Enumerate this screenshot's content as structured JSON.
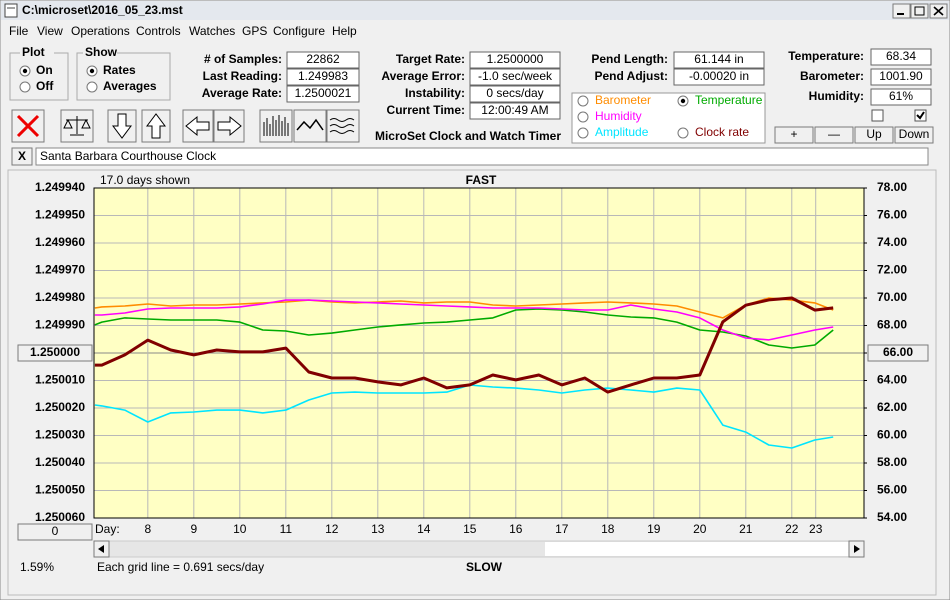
{
  "window": {
    "title": "C:\\microset\\2016_05_23.mst"
  },
  "menu": [
    "File",
    "View",
    "Operations",
    "Controls",
    "Watches",
    "GPS",
    "Configure",
    "Help"
  ],
  "plot_group": {
    "title": "Plot",
    "options": [
      {
        "label": "On",
        "checked": true
      },
      {
        "label": "Off",
        "checked": false
      }
    ]
  },
  "show_group": {
    "title": "Show",
    "options": [
      {
        "label": "Rates",
        "checked": true
      },
      {
        "label": "Averages",
        "checked": false
      }
    ]
  },
  "stats": [
    {
      "label": "# of Samples:",
      "value": "22862"
    },
    {
      "label": "Last Reading:",
      "value": "1.249983"
    },
    {
      "label": "Average Rate:",
      "value": "1.2500021"
    }
  ],
  "rates": [
    {
      "label": "Target Rate:",
      "value": "1.2500000"
    },
    {
      "label": "Average Error:",
      "value": "-1.0 sec/week"
    },
    {
      "label": "Instability:",
      "value": "0 secs/day"
    },
    {
      "label": "Current Time:",
      "value": "12:00:49 AM"
    }
  ],
  "pendulum": [
    {
      "label": "Pend Length:",
      "value": "61.144 in"
    },
    {
      "label": "Pend Adjust:",
      "value": "-0.00020 in"
    }
  ],
  "environment": [
    {
      "label": "Temperature:",
      "value": "68.34"
    },
    {
      "label": "Barometer:",
      "value": "1001.90"
    },
    {
      "label": "Humidity:",
      "value": "61%"
    }
  ],
  "app_title": "MicroSet Clock and Watch Timer",
  "checkboxes": [
    false,
    true
  ],
  "buttons": [
    "+",
    "—",
    "Up",
    "Down"
  ],
  "close_button": "X",
  "clock_name": "Santa Barbara Courthouse Clock",
  "scroll_position": "0",
  "zoom": "1.59%",
  "chart_data": {
    "type": "line",
    "title": "FAST",
    "subtitle": "17.0 days shown",
    "xlabel": "Day:",
    "footnote": "Each grid line = 0.691 secs/day",
    "bottom_label": "SLOW",
    "grid": true,
    "background": "#ffffc4",
    "x": [
      6.85,
      7,
      7.5,
      8,
      8.5,
      9,
      9.5,
      10,
      10.5,
      11,
      11.5,
      12,
      12.5,
      13,
      13.5,
      14,
      14.5,
      15,
      15.5,
      16,
      16.5,
      17,
      17.5,
      18,
      18.5,
      19,
      19.5,
      20,
      20.5,
      21,
      21.5,
      22,
      22.5,
      22.9
    ],
    "xlim": [
      6.83,
      23.57
    ],
    "xticks": [
      8,
      9,
      10,
      11,
      12,
      13,
      14,
      15,
      16,
      17,
      18,
      19,
      20,
      21,
      22,
      {
        "value": 22.52,
        "label": "23"
      }
    ],
    "ylim": [
      1.25006,
      1.24994
    ],
    "yticks": [
      {
        "value": 1.24994,
        "label": "1.249940"
      },
      {
        "value": 1.24995,
        "label": "1.249950"
      },
      {
        "value": 1.24996,
        "label": "1.249960"
      },
      {
        "value": 1.24997,
        "label": "1.249970"
      },
      {
        "value": 1.24998,
        "label": "1.249980"
      },
      {
        "value": 1.24999,
        "label": "1.249990"
      },
      {
        "value": 1.25,
        "label": "1.250000"
      },
      {
        "value": 1.25001,
        "label": "1.250010"
      },
      {
        "value": 1.25002,
        "label": "1.250020"
      },
      {
        "value": 1.25003,
        "label": "1.250030"
      },
      {
        "value": 1.25004,
        "label": "1.250040"
      },
      {
        "value": 1.25005,
        "label": "1.250050"
      },
      {
        "value": 1.25006,
        "label": "1.250060"
      }
    ],
    "y2lim": [
      54,
      78
    ],
    "y2ticks": [
      {
        "value": 78,
        "label": "78.00"
      },
      {
        "value": 76,
        "label": "76.00"
      },
      {
        "value": 74,
        "label": "74.00"
      },
      {
        "value": 72,
        "label": "72.00"
      },
      {
        "value": 70,
        "label": "70.00"
      },
      {
        "value": 68,
        "label": "68.00"
      },
      {
        "value": 66,
        "label": "66.00"
      },
      {
        "value": 64,
        "label": "64.00"
      },
      {
        "value": 62,
        "label": "62.00"
      },
      {
        "value": 60,
        "label": "60.00"
      },
      {
        "value": 58,
        "label": "58.00"
      },
      {
        "value": 56,
        "label": "56.00"
      },
      {
        "value": 54,
        "label": "54.00"
      }
    ],
    "series": [
      {
        "name": "Barometer",
        "color": "#ff8c00",
        "axis": "y2",
        "checked": false,
        "values": [
          69.27,
          69.35,
          69.42,
          69.56,
          69.42,
          69.49,
          69.49,
          69.56,
          69.64,
          69.71,
          69.85,
          69.71,
          69.64,
          69.71,
          69.78,
          69.64,
          69.71,
          69.71,
          69.49,
          69.42,
          69.49,
          69.56,
          69.64,
          69.71,
          69.64,
          69.56,
          69.42,
          68.98,
          68.55,
          69.49,
          70.0,
          69.85,
          69.64,
          69.13
        ]
      },
      {
        "name": "Temperature",
        "color": "#00aa00",
        "axis": "y2",
        "checked": true,
        "values": [
          68.04,
          68.25,
          68.55,
          68.47,
          68.4,
          68.4,
          68.4,
          68.25,
          67.67,
          67.6,
          67.31,
          67.45,
          67.67,
          67.89,
          68.04,
          68.18,
          68.25,
          68.4,
          68.55,
          69.13,
          69.2,
          69.13,
          68.98,
          68.76,
          68.62,
          68.55,
          68.25,
          67.67,
          67.53,
          67.24,
          66.58,
          66.36,
          66.58,
          67.67
        ]
      },
      {
        "name": "Humidity",
        "color": "#ff00ff",
        "axis": "y2",
        "checked": false,
        "values": [
          68.76,
          68.76,
          68.91,
          69.2,
          69.27,
          69.27,
          69.27,
          69.35,
          69.56,
          69.85,
          69.85,
          69.78,
          69.71,
          69.64,
          69.56,
          69.49,
          69.42,
          69.35,
          69.27,
          69.27,
          69.27,
          69.2,
          69.13,
          69.13,
          69.49,
          69.2,
          68.98,
          68.55,
          67.67,
          67.09,
          66.95,
          67.31,
          67.67,
          67.89
        ]
      },
      {
        "name": "Amplitude",
        "color": "#00e5ff",
        "axis": "y2",
        "checked": false,
        "values": [
          62.22,
          62.15,
          61.85,
          60.98,
          61.64,
          61.71,
          61.85,
          61.85,
          61.64,
          61.85,
          62.58,
          63.09,
          63.16,
          63.09,
          63.09,
          63.09,
          63.16,
          63.67,
          63.53,
          63.45,
          63.31,
          63.09,
          63.31,
          63.45,
          63.31,
          63.16,
          63.45,
          63.31,
          60.76,
          60.25,
          59.31,
          59.09,
          59.67,
          59.89
        ]
      },
      {
        "name": "Clock rate",
        "color": "#800000",
        "axis": "y",
        "checked": false,
        "values": [
          1.2500044,
          1.2500044,
          1.2500007,
          1.2499953,
          1.2499989,
          1.2500007,
          1.2499989,
          1.2499996,
          1.2499996,
          1.2499982,
          1.2500069,
          1.2500091,
          1.2500091,
          1.2500105,
          1.2500116,
          1.2500091,
          1.2500127,
          1.2500116,
          1.250008,
          1.2500098,
          1.250008,
          1.2500116,
          1.2500091,
          1.2500142,
          1.2500116,
          1.2500091,
          1.2500091,
          1.250008,
          1.2499887,
          1.2499826,
          1.2499807,
          1.24998,
          1.2499844,
          1.2499836
        ]
      }
    ]
  }
}
